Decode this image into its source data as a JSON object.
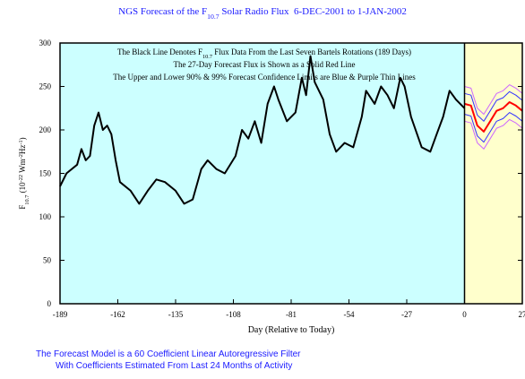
{
  "chart_data": {
    "type": "line",
    "title": [
      {
        "text": "NGS Forecast of the "
      },
      {
        "text": "F"
      },
      {
        "text": "10.7",
        "shift": "sub"
      },
      {
        "text": " Solar Radio Flux  6-DEC-2001 to 1-JAN-2002"
      }
    ],
    "ylabel": [
      {
        "text": "F"
      },
      {
        "text": "10.7",
        "shift": "sub"
      },
      {
        "text": " (10"
      },
      {
        "text": "-22",
        "shift": "sup"
      },
      {
        "text": " Wm"
      },
      {
        "text": "-2",
        "shift": "sup"
      },
      {
        "text": "Hz"
      },
      {
        "text": "-1",
        "shift": "sup"
      },
      {
        "text": ")"
      }
    ],
    "xlabel": "Day (Relative to Today)",
    "annotations": [
      [
        {
          "text": "The Black Line Denotes "
        },
        {
          "text": "F"
        },
        {
          "text": "10.7",
          "shift": "sub"
        },
        {
          "text": " Flux Data From the Last Seven Bartels Rotations (189 Days)"
        }
      ],
      [
        {
          "text": "The 27-Day Forecast Flux is Shown as a Solid Red Line"
        }
      ],
      [
        {
          "text": "The Upper and Lower 90% & 99% Forecast Confidence Limits are Blue & Purple Thin Lines"
        }
      ]
    ],
    "footer": [
      "The Forecast Model is a 60 Coefficient Linear Autoregressive Filter",
      "With Coefficients Estimated From Last 24 Months of Activity"
    ],
    "xlim": [
      -189,
      27
    ],
    "xticks": [
      -189,
      -162,
      -135,
      -108,
      -81,
      -54,
      -27,
      0,
      27
    ],
    "ylim": [
      0,
      300
    ],
    "yticks": [
      0,
      50,
      100,
      150,
      200,
      250,
      300
    ],
    "history_color": "#ccffff",
    "forecast_color": "#ffffcc",
    "series": [
      {
        "color": "#000000",
        "width": 2,
        "x": [
          -189,
          -186,
          -181,
          -179,
          -177,
          -175,
          -173,
          -171,
          -169,
          -167,
          -165,
          -163,
          -161,
          -156,
          -152,
          -148,
          -144,
          -140,
          -135,
          -131,
          -127,
          -123,
          -120,
          -116,
          -112,
          -107,
          -104,
          -101,
          -98,
          -95,
          -92,
          -89,
          -87,
          -83,
          -79,
          -76,
          -74,
          -72,
          -70,
          -66,
          -63,
          -60,
          -56,
          -52,
          -48,
          -46,
          -42,
          -39,
          -36,
          -33,
          -30,
          -28,
          -25,
          -20,
          -16,
          -13,
          -10,
          -7,
          -4,
          0
        ],
        "values": [
          135,
          150,
          160,
          178,
          165,
          170,
          205,
          220,
          200,
          205,
          195,
          165,
          140,
          130,
          115,
          130,
          143,
          140,
          130,
          115,
          120,
          155,
          165,
          155,
          150,
          170,
          200,
          190,
          210,
          185,
          230,
          250,
          235,
          210,
          220,
          260,
          240,
          285,
          255,
          235,
          195,
          175,
          185,
          180,
          215,
          245,
          230,
          250,
          240,
          225,
          260,
          250,
          215,
          180,
          175,
          195,
          215,
          245,
          235,
          225
        ]
      },
      {
        "color": "#cc66ff",
        "width": 1,
        "x": [
          0,
          3,
          6,
          9,
          12,
          15,
          18,
          21,
          24,
          27
        ],
        "values": [
          250,
          248,
          225,
          218,
          230,
          242,
          245,
          252,
          248,
          242
        ]
      },
      {
        "color": "#3333ff",
        "width": 1,
        "x": [
          0,
          3,
          6,
          9,
          12,
          15,
          18,
          21,
          24,
          27
        ],
        "values": [
          242,
          240,
          217,
          210,
          222,
          234,
          237,
          244,
          240,
          234
        ]
      },
      {
        "color": "#ff0000",
        "width": 2,
        "x": [
          0,
          3,
          6,
          9,
          12,
          15,
          18,
          21,
          24,
          27
        ],
        "values": [
          230,
          228,
          205,
          198,
          210,
          222,
          225,
          232,
          228,
          222
        ]
      },
      {
        "color": "#3333ff",
        "width": 1,
        "x": [
          0,
          3,
          6,
          9,
          12,
          15,
          18,
          21,
          24,
          27
        ],
        "values": [
          218,
          216,
          193,
          186,
          198,
          210,
          213,
          220,
          216,
          210
        ]
      },
      {
        "color": "#cc66ff",
        "width": 1,
        "x": [
          0,
          3,
          6,
          9,
          12,
          15,
          18,
          21,
          24,
          27
        ],
        "values": [
          210,
          208,
          185,
          178,
          190,
          202,
          205,
          212,
          208,
          202
        ]
      }
    ]
  }
}
